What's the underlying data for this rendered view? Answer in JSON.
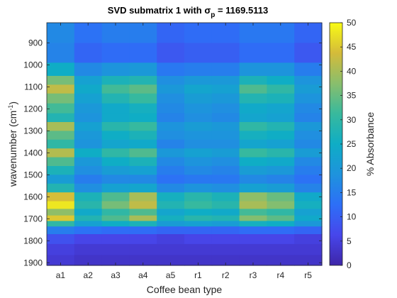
{
  "chart_data": {
    "type": "heatmap",
    "title_prefix": "SVD submatrix 1 with σ",
    "title_subscript": "p",
    "title_suffix": " = 1169.5113",
    "xlabel": "Coffee bean type",
    "ylabel_main": "wavenumber (cm",
    "ylabel_sup": "-1",
    "ylabel_end": ")",
    "colorbar_label": "% Absorbance",
    "categories": [
      "a1",
      "a2",
      "a3",
      "a4",
      "a5",
      "r1",
      "r2",
      "r3",
      "r4",
      "r5"
    ],
    "y_ticks": [
      900,
      1000,
      1100,
      1200,
      1300,
      1400,
      1500,
      1600,
      1700,
      1800,
      1900
    ],
    "ylim": [
      808,
      1912
    ],
    "clim": [
      0,
      50
    ],
    "colorbar_ticks": [
      0,
      5,
      10,
      15,
      20,
      25,
      30,
      35,
      40,
      45,
      50
    ],
    "colormap": "parula",
    "rows": [
      {
        "wavenumber": 850,
        "values": [
          17,
          13,
          15,
          15,
          11,
          12,
          12,
          14,
          14,
          11
        ]
      },
      {
        "wavenumber": 950,
        "values": [
          16,
          11,
          12,
          12,
          9,
          10,
          10,
          12,
          12,
          9
        ]
      },
      {
        "wavenumber": 1030,
        "values": [
          25,
          17,
          19,
          20,
          14,
          15,
          15,
          19,
          19,
          15
        ]
      },
      {
        "wavenumber": 1070,
        "values": [
          36,
          22,
          27,
          28,
          18,
          20,
          20,
          27,
          25,
          19
        ]
      },
      {
        "wavenumber": 1110,
        "values": [
          42,
          24,
          32,
          34,
          20,
          23,
          22,
          33,
          30,
          21
        ]
      },
      {
        "wavenumber": 1150,
        "values": [
          36,
          22,
          28,
          31,
          18,
          21,
          20,
          28,
          27,
          19
        ]
      },
      {
        "wavenumber": 1200,
        "values": [
          32,
          20,
          24,
          26,
          17,
          19,
          18,
          24,
          23,
          17
        ]
      },
      {
        "wavenumber": 1240,
        "values": [
          28,
          19,
          24,
          25,
          16,
          18,
          17,
          23,
          22,
          16
        ]
      },
      {
        "wavenumber": 1280,
        "values": [
          40,
          22,
          29,
          31,
          19,
          21,
          20,
          30,
          28,
          20
        ]
      },
      {
        "wavenumber": 1320,
        "values": [
          34,
          20,
          25,
          27,
          18,
          19,
          19,
          26,
          25,
          18
        ]
      },
      {
        "wavenumber": 1360,
        "values": [
          30,
          19,
          23,
          24,
          16,
          18,
          18,
          23,
          22,
          17
        ]
      },
      {
        "wavenumber": 1400,
        "values": [
          41,
          25,
          30,
          33,
          20,
          22,
          21,
          31,
          29,
          21
        ]
      },
      {
        "wavenumber": 1440,
        "values": [
          33,
          20,
          25,
          27,
          17,
          19,
          18,
          25,
          24,
          17
        ]
      },
      {
        "wavenumber": 1480,
        "values": [
          27,
          18,
          21,
          22,
          15,
          17,
          16,
          21,
          20,
          15
        ]
      },
      {
        "wavenumber": 1520,
        "values": [
          21,
          15,
          17,
          17,
          13,
          14,
          14,
          17,
          16,
          13
        ]
      },
      {
        "wavenumber": 1560,
        "values": [
          28,
          18,
          22,
          23,
          17,
          19,
          18,
          22,
          21,
          16
        ]
      },
      {
        "wavenumber": 1600,
        "values": [
          44,
          27,
          33,
          40,
          26,
          29,
          27,
          38,
          35,
          24
        ]
      },
      {
        "wavenumber": 1640,
        "values": [
          48,
          29,
          36,
          42,
          28,
          31,
          29,
          40,
          37,
          26
        ]
      },
      {
        "wavenumber": 1670,
        "values": [
          38,
          24,
          30,
          33,
          23,
          25,
          24,
          32,
          30,
          22
        ]
      },
      {
        "wavenumber": 1700,
        "values": [
          45,
          28,
          33,
          40,
          26,
          29,
          28,
          37,
          34,
          24
        ]
      },
      {
        "wavenumber": 1720,
        "values": [
          30,
          22,
          25,
          27,
          21,
          22,
          21,
          26,
          25,
          20
        ]
      },
      {
        "wavenumber": 1750,
        "values": [
          15,
          13,
          12,
          12,
          11,
          11,
          11,
          12,
          12,
          11
        ]
      },
      {
        "wavenumber": 1790,
        "values": [
          8,
          6,
          6,
          6,
          5,
          6,
          6,
          6,
          6,
          5
        ]
      },
      {
        "wavenumber": 1840,
        "values": [
          5,
          4,
          4,
          4,
          4,
          4,
          4,
          4,
          4,
          4
        ]
      },
      {
        "wavenumber": 1890,
        "values": [
          4,
          3,
          3,
          3,
          3,
          3,
          3,
          3,
          3,
          3
        ]
      }
    ]
  }
}
